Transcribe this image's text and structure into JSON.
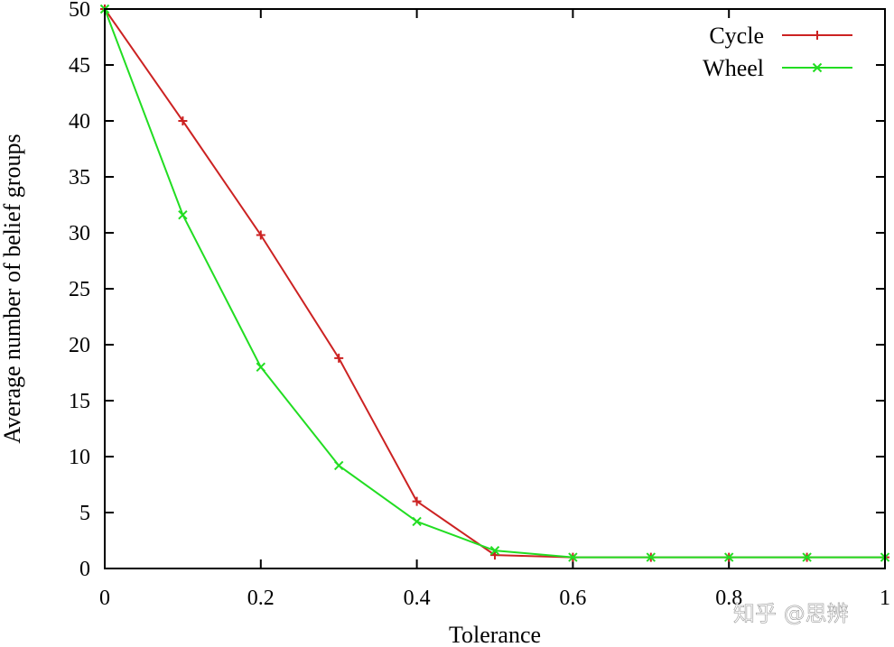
{
  "chart_data": {
    "type": "line",
    "xlabel": "Tolerance",
    "ylabel": "Average number of belief groups",
    "xlim": [
      0,
      1
    ],
    "ylim": [
      0,
      50
    ],
    "xticks": [
      0,
      0.2,
      0.4,
      0.6,
      0.8,
      1
    ],
    "xtick_labels": [
      "0",
      "0.2",
      "0.4",
      "0.6",
      "0.8",
      "1"
    ],
    "yticks": [
      0,
      5,
      10,
      15,
      20,
      25,
      30,
      35,
      40,
      45,
      50
    ],
    "ytick_labels": [
      "0",
      "5",
      "10",
      "15",
      "20",
      "25",
      "30",
      "35",
      "40",
      "45",
      "50"
    ],
    "grid": false,
    "legend_position": "top-right",
    "x": [
      0,
      0.1,
      0.2,
      0.3,
      0.4,
      0.5,
      0.6,
      0.7,
      0.8,
      0.9,
      1.0
    ],
    "series": [
      {
        "name": "Cycle",
        "color": "#cc2222",
        "marker": "plus",
        "values": [
          50,
          40,
          29.8,
          18.8,
          6,
          1.2,
          1,
          1,
          1,
          1,
          1
        ]
      },
      {
        "name": "Wheel",
        "color": "#22dd22",
        "marker": "cross",
        "values": [
          50,
          31.6,
          18,
          9.2,
          4.2,
          1.6,
          1,
          1,
          1,
          1,
          1
        ]
      }
    ]
  },
  "watermark": {
    "text": "知乎 @思辨"
  }
}
